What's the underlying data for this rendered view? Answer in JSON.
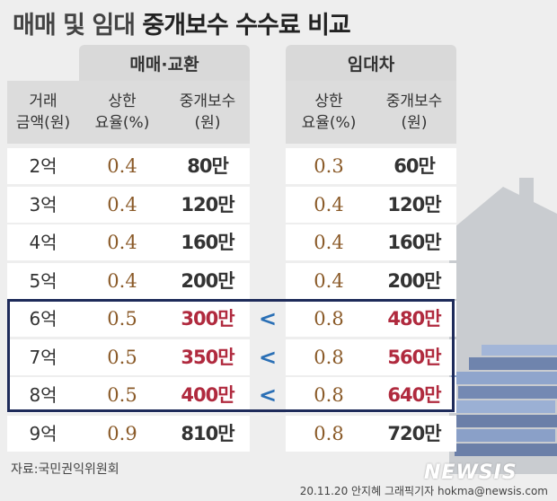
{
  "title": {
    "part1": "매매 및 임대",
    "part2": "중개보수 수수료 비교"
  },
  "groups": {
    "sale": "매매·교환",
    "rent": "임대차"
  },
  "headers": {
    "amount": [
      "거래",
      "금액(원)"
    ],
    "rate": [
      "상한",
      "요율(%)"
    ],
    "fee": [
      "중개보수",
      "(원)"
    ]
  },
  "rows": [
    {
      "amount": "2억",
      "sale_rate": "0.4",
      "sale_fee": "80만",
      "cmp": "",
      "rent_rate": "0.3",
      "rent_fee": "60만"
    },
    {
      "amount": "3억",
      "sale_rate": "0.4",
      "sale_fee": "120만",
      "cmp": "",
      "rent_rate": "0.4",
      "rent_fee": "120만"
    },
    {
      "amount": "4억",
      "sale_rate": "0.4",
      "sale_fee": "160만",
      "cmp": "",
      "rent_rate": "0.4",
      "rent_fee": "160만"
    },
    {
      "amount": "5억",
      "sale_rate": "0.4",
      "sale_fee": "200만",
      "cmp": "",
      "rent_rate": "0.4",
      "rent_fee": "200만"
    },
    {
      "amount": "6억",
      "sale_rate": "0.5",
      "sale_fee": "300만",
      "cmp": "<",
      "rent_rate": "0.8",
      "rent_fee": "480만"
    },
    {
      "amount": "7억",
      "sale_rate": "0.5",
      "sale_fee": "350만",
      "cmp": "<",
      "rent_rate": "0.8",
      "rent_fee": "560만"
    },
    {
      "amount": "8억",
      "sale_rate": "0.5",
      "sale_fee": "400만",
      "cmp": "<",
      "rent_rate": "0.8",
      "rent_fee": "640만"
    },
    {
      "amount": "9억",
      "sale_rate": "0.9",
      "sale_fee": "810만",
      "cmp": "",
      "rent_rate": "0.8",
      "rent_fee": "720만"
    }
  ],
  "highlight_rows": [
    4,
    5,
    6
  ],
  "colors": {
    "highlight_border": "#1e2b5a",
    "fee_highlight": "#b02a3e",
    "rate_text": "#8a5a28",
    "compare": "#2a6fb5"
  },
  "source": "자료:국민권익위원회",
  "credit": "20.11.20 안지혜 그래픽기자 hokma@newsis.com",
  "logo": "NEWSIS"
}
